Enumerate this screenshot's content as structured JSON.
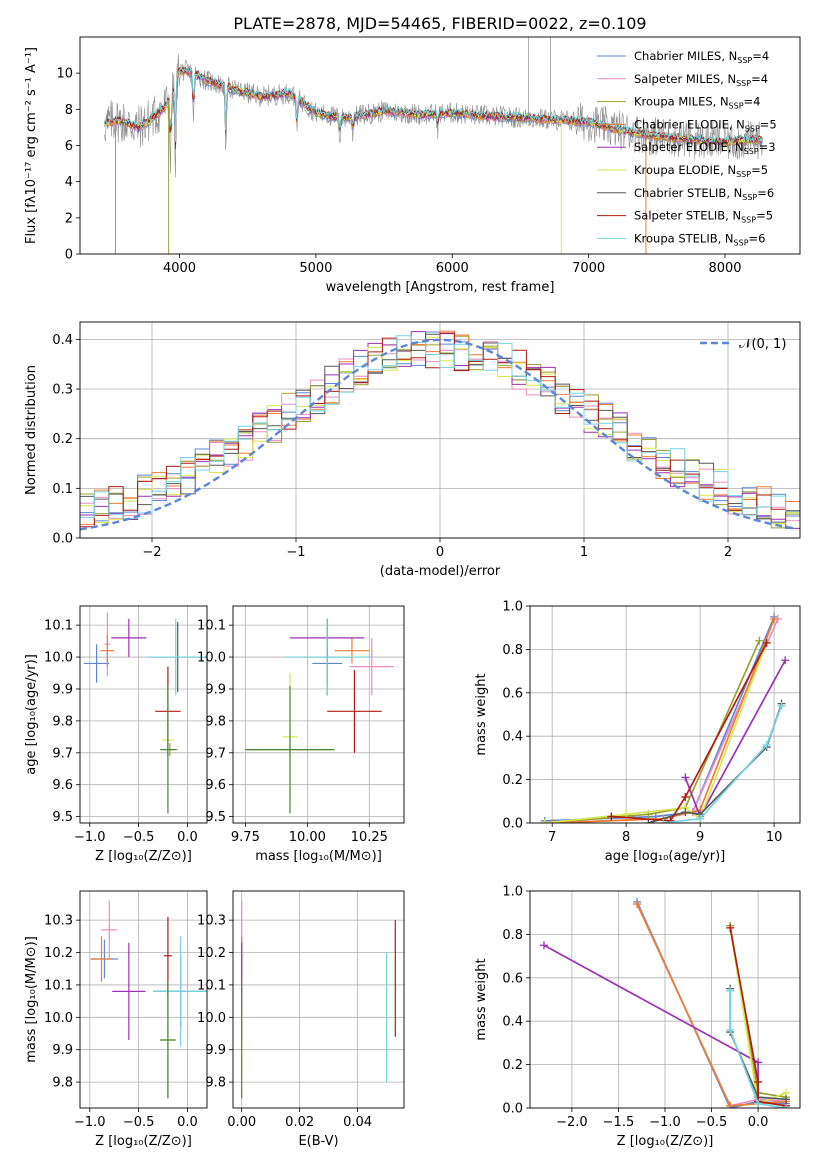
{
  "figure_title": "PLATE=2878, MJD=54465, FIBERID=0022, z=0.109",
  "colors": {
    "c_miles": "#5b87d6",
    "s_miles": "#e98ec3",
    "k_miles": "#9aa033",
    "c_elodie": "#ed7d31",
    "s_elodie": "#9b32b6",
    "k_elodie": "#d6e84e",
    "c_stelib": "#595959",
    "s_stelib": "#b01c12",
    "k_stelib": "#74d3df",
    "data": "#8c8c8c",
    "normal": "#5b87d6",
    "green_cross": "#4a8a3a"
  },
  "chart_data": [
    {
      "id": "spectrum",
      "type": "line",
      "title": "PLATE=2878, MJD=54465, FIBERID=0022, z=0.109",
      "xlabel": "wavelength [Angstrom, rest frame]",
      "ylabel": "Flux [fλ10⁻¹⁷ erg cm⁻² s⁻¹ A⁻¹]",
      "xlim": [
        3270,
        8550
      ],
      "ylim": [
        0,
        12
      ],
      "xticks": [
        4000,
        5000,
        6000,
        7000,
        8000
      ],
      "yticks": [
        0,
        2,
        4,
        6,
        8,
        10
      ],
      "xticklabels": [
        "4000",
        "5000",
        "6000",
        "7000",
        "8000"
      ],
      "yticklabels": [
        "0",
        "2",
        "4",
        "6",
        "8",
        "10"
      ],
      "grid": false,
      "legend_position": "upper-right",
      "continuum": {
        "x": [
          3450,
          3550,
          3700,
          3800,
          3900,
          3950,
          4000,
          4100,
          4200,
          4400,
          4600,
          4800,
          4900,
          5000,
          5200,
          5500,
          5800,
          6000,
          6300,
          6600,
          6800,
          7000,
          7200,
          7500,
          7800,
          8000,
          8200,
          8280
        ],
        "y": [
          7.2,
          7.4,
          7.0,
          7.5,
          8.2,
          8.8,
          10.2,
          10.0,
          9.6,
          9.1,
          8.7,
          8.9,
          8.4,
          7.8,
          7.5,
          7.9,
          7.7,
          7.8,
          7.6,
          7.5,
          7.4,
          7.3,
          6.9,
          6.5,
          6.3,
          6.2,
          6.3,
          6.3
        ]
      },
      "absorption_lines": [
        {
          "x": 3934,
          "y": 4.8
        },
        {
          "x": 3969,
          "y": 4.3
        },
        {
          "x": 4102,
          "y": 7.0
        },
        {
          "x": 4340,
          "y": 5.3
        },
        {
          "x": 4861,
          "y": 6.5
        },
        {
          "x": 5175,
          "y": 6.4
        },
        {
          "x": 5270,
          "y": 6.6
        },
        {
          "x": 5893,
          "y": 6.9
        }
      ],
      "series": [
        {
          "name": "Chabrier MILES, N",
          "sub": "SSP",
          "suffix": "=4",
          "color_key": "c_miles"
        },
        {
          "name": "Salpeter MILES, N",
          "sub": "SSP",
          "suffix": "=4",
          "color_key": "s_miles"
        },
        {
          "name": "Kroupa MILES, N",
          "sub": "SSP",
          "suffix": "=4",
          "color_key": "k_miles"
        },
        {
          "name": "Chabrier ELODIE, N",
          "sub": "SSP",
          "suffix": "=5",
          "color_key": "c_elodie"
        },
        {
          "name": "Salpeter ELODIE, N",
          "sub": "SSP",
          "suffix": "=3",
          "color_key": "s_elodie"
        },
        {
          "name": "Kroupa ELODIE, N",
          "sub": "SSP",
          "suffix": "=5",
          "color_key": "k_elodie"
        },
        {
          "name": "Chabrier STELIB, N",
          "sub": "SSP",
          "suffix": "=6",
          "color_key": "c_stelib"
        },
        {
          "name": "Salpeter STELIB, N",
          "sub": "SSP",
          "suffix": "=5",
          "color_key": "s_stelib"
        },
        {
          "name": "Kroupa STELIB, N",
          "sub": "SSP",
          "suffix": "=6",
          "color_key": "k_stelib"
        }
      ]
    },
    {
      "id": "residuals",
      "type": "bar",
      "xlabel": "(data-model)/error",
      "ylabel": "Normed distribution",
      "xlim": [
        -2.5,
        2.5
      ],
      "ylim": [
        0,
        0.435
      ],
      "xticks": [
        -2,
        -1,
        0,
        1,
        2
      ],
      "xticklabels": [
        "−2",
        "−1",
        "0",
        "1",
        "2"
      ],
      "yticks": [
        0,
        0.1,
        0.2,
        0.3,
        0.4
      ],
      "yticklabels": [
        "0.0",
        "0.1",
        "0.2",
        "0.3",
        "0.4"
      ],
      "grid": true,
      "legend_position": "upper-right",
      "normal_curve": {
        "name": "𝒩(0, 1)",
        "mean": 0,
        "sigma": 1
      },
      "hist_bin_width": 0.1
    },
    {
      "id": "age_vs_Z",
      "type": "scatter",
      "xlabel": "Z [log₁₀(Z/Z⊙)]",
      "ylabel": "age  [log₁₀(age/yr)]",
      "xlim": [
        -1.1,
        0.2
      ],
      "ylim": [
        9.48,
        10.16
      ],
      "xticks": [
        -1.0,
        -0.5,
        0.0
      ],
      "xticklabels": [
        "−1.0",
        "−0.5",
        "0.0"
      ],
      "yticks": [
        9.5,
        9.6,
        9.7,
        9.8,
        9.9,
        10.0,
        10.1
      ],
      "yticklabels": [
        "9.5",
        "9.6",
        "9.7",
        "9.8",
        "9.9",
        "10.0",
        "10.1"
      ],
      "grid": true,
      "points": [
        {
          "color_key": "c_miles",
          "x": -0.93,
          "y": 9.98,
          "xerr": 0.13,
          "yerr": 0.06
        },
        {
          "color_key": "s_miles",
          "x": -0.82,
          "y": 10.04,
          "xerr": 0.03,
          "yerr": 0.1
        },
        {
          "color_key": "k_miles",
          "x": -0.18,
          "y": 9.71,
          "xerr": 0.08,
          "yerr": 0.02
        },
        {
          "color_key": "c_elodie",
          "x": -0.82,
          "y": 10.02,
          "xerr": 0.07,
          "yerr": 0.05
        },
        {
          "color_key": "s_elodie",
          "x": -0.6,
          "y": 10.06,
          "xerr": 0.18,
          "yerr": 0.06
        },
        {
          "color_key": "k_elodie",
          "x": -0.2,
          "y": 9.74,
          "xerr": 0.06,
          "yerr": 0.21
        },
        {
          "color_key": "c_stelib",
          "x": -0.1,
          "y": 10.0,
          "xerr": 0.3,
          "yerr": 0.11
        },
        {
          "color_key": "s_stelib",
          "x": -0.2,
          "y": 9.83,
          "xerr": 0.13,
          "yerr": 0.14
        },
        {
          "color_key": "k_stelib",
          "x": -0.12,
          "y": 10.0,
          "xerr": 0.3,
          "yerr": 0.12
        },
        {
          "color_key": "green_cross",
          "x": -0.2,
          "y": 9.71,
          "xerr": 0.08,
          "yerr": 0.2
        }
      ]
    },
    {
      "id": "age_vs_mass",
      "type": "scatter",
      "xlabel": "mass [log₁₀(M/M⊙)]",
      "ylabel": "",
      "xlim": [
        9.7,
        10.39
      ],
      "ylim": [
        9.48,
        10.16
      ],
      "xticks": [
        9.75,
        10.0,
        10.25
      ],
      "xticklabels": [
        "9.75",
        "10.00",
        "10.25"
      ],
      "yticks": [
        9.5,
        9.6,
        9.7,
        9.8,
        9.9,
        10.0,
        10.1
      ],
      "yticklabels": [
        "9.5",
        "9.6",
        "9.7",
        "9.8",
        "9.9",
        "10.0",
        "10.1"
      ],
      "grid": true,
      "points": [
        {
          "color_key": "c_miles",
          "x": 10.08,
          "y": 9.98,
          "xerr": 0.06,
          "yerr": 0.06
        },
        {
          "color_key": "s_miles",
          "x": 10.26,
          "y": 9.97,
          "xerr": 0.09,
          "yerr": 0.09
        },
        {
          "color_key": "k_miles",
          "x": 9.93,
          "y": 9.71,
          "xerr": 0.18,
          "yerr": 0.02
        },
        {
          "color_key": "c_elodie",
          "x": 10.18,
          "y": 10.02,
          "xerr": 0.07,
          "yerr": 0.04
        },
        {
          "color_key": "s_elodie",
          "x": 10.08,
          "y": 10.06,
          "xerr": 0.15,
          "yerr": 0.06
        },
        {
          "color_key": "k_elodie",
          "x": 9.93,
          "y": 9.75,
          "xerr": 0.03,
          "yerr": 0.2
        },
        {
          "color_key": "c_stelib",
          "x": 10.08,
          "y": 10.0,
          "xerr": 0.1,
          "yerr": 0.12
        },
        {
          "color_key": "s_stelib",
          "x": 10.19,
          "y": 9.83,
          "xerr": 0.11,
          "yerr": 0.13
        },
        {
          "color_key": "k_stelib",
          "x": 10.08,
          "y": 10.0,
          "xerr": 0.17,
          "yerr": 0.12
        },
        {
          "color_key": "green_cross",
          "x": 9.93,
          "y": 9.71,
          "xerr": 0.18,
          "yerr": 0.2
        }
      ]
    },
    {
      "id": "mass_weight_vs_age",
      "type": "line",
      "xlabel": "age  [log₁₀(age/yr)]",
      "ylabel": "mass weight",
      "xlim": [
        6.7,
        10.35
      ],
      "ylim": [
        0,
        1
      ],
      "xticks": [
        7,
        8,
        9,
        10
      ],
      "xticklabels": [
        "7",
        "8",
        "9",
        "10"
      ],
      "yticks": [
        0,
        0.2,
        0.4,
        0.6,
        0.8,
        1.0
      ],
      "yticklabels": [
        "0.0",
        "0.2",
        "0.4",
        "0.6",
        "0.8",
        "1.0"
      ],
      "grid": true,
      "series": [
        {
          "color_key": "c_miles",
          "x": [
            6.9,
            8.4,
            8.9,
            10.0
          ],
          "y": [
            0.01,
            0.03,
            0.05,
            0.95
          ]
        },
        {
          "color_key": "s_miles",
          "x": [
            6.9,
            8.5,
            8.9,
            10.05
          ],
          "y": [
            0.0,
            0.02,
            0.05,
            0.94
          ]
        },
        {
          "color_key": "k_miles",
          "x": [
            6.9,
            8.3,
            8.8,
            9.8
          ],
          "y": [
            0.0,
            0.04,
            0.07,
            0.84
          ]
        },
        {
          "color_key": "c_elodie",
          "x": [
            7.0,
            8.5,
            9.0,
            10.0
          ],
          "y": [
            0.0,
            0.02,
            0.06,
            0.94
          ]
        },
        {
          "color_key": "s_elodie",
          "x": [
            8.8,
            9.0,
            10.15
          ],
          "y": [
            0.21,
            0.03,
            0.75
          ]
        },
        {
          "color_key": "k_elodie",
          "x": [
            6.9,
            8.0,
            8.8,
            9.0,
            9.9
          ],
          "y": [
            0.0,
            0.04,
            0.07,
            0.02,
            0.83
          ]
        },
        {
          "color_key": "c_stelib",
          "x": [
            8.3,
            8.8,
            9.0,
            9.9,
            10.1
          ],
          "y": [
            0.0,
            0.05,
            0.04,
            0.35,
            0.55
          ]
        },
        {
          "color_key": "s_stelib",
          "x": [
            7.8,
            8.6,
            8.8,
            9.9
          ],
          "y": [
            0.03,
            0.01,
            0.12,
            0.83
          ]
        },
        {
          "color_key": "k_stelib",
          "x": [
            8.5,
            9.0,
            9.9,
            10.1
          ],
          "y": [
            0.0,
            0.02,
            0.36,
            0.54
          ]
        }
      ]
    },
    {
      "id": "mass_vs_Z",
      "type": "scatter",
      "xlabel": "Z [log₁₀(Z/Z⊙)]",
      "ylabel": "mass [log₁₀(M/M⊙)]",
      "xlim": [
        -1.1,
        0.2
      ],
      "ylim": [
        9.72,
        10.39
      ],
      "xticks": [
        -1.0,
        -0.5,
        0.0
      ],
      "xticklabels": [
        "−1.0",
        "−0.5",
        "0.0"
      ],
      "yticks": [
        9.8,
        9.9,
        10.0,
        10.1,
        10.2,
        10.3
      ],
      "yticklabels": [
        "9.8",
        "9.9",
        "10.0",
        "10.1",
        "10.2",
        "10.3"
      ],
      "grid": true,
      "points": [
        {
          "color_key": "c_miles",
          "x": -0.85,
          "y": 10.18,
          "xerr": 0.14,
          "yerr": 0.06
        },
        {
          "color_key": "s_miles",
          "x": -0.8,
          "y": 10.27,
          "xerr": 0.08,
          "yerr": 0.09
        },
        {
          "color_key": "k_miles",
          "x": -0.2,
          "y": 9.93,
          "xerr": 0.08,
          "yerr": 0.18
        },
        {
          "color_key": "c_elodie",
          "x": -0.88,
          "y": 10.18,
          "xerr": 0.11,
          "yerr": 0.07
        },
        {
          "color_key": "s_elodie",
          "x": -0.6,
          "y": 10.08,
          "xerr": 0.17,
          "yerr": 0.15
        },
        {
          "color_key": "k_elodie",
          "x": -0.2,
          "y": 9.93,
          "xerr": 0.08,
          "yerr": 0.03
        },
        {
          "color_key": "c_stelib",
          "x": -0.07,
          "y": 10.08,
          "xerr": 0.28,
          "yerr": 0.11
        },
        {
          "color_key": "s_stelib",
          "x": -0.2,
          "y": 10.19,
          "xerr": 0.04,
          "yerr": 0.12
        },
        {
          "color_key": "k_stelib",
          "x": -0.07,
          "y": 10.08,
          "xerr": 0.28,
          "yerr": 0.17
        },
        {
          "color_key": "green_cross",
          "x": -0.2,
          "y": 9.93,
          "xerr": 0.08,
          "yerr": 0.18
        }
      ]
    },
    {
      "id": "mass_vs_ebv",
      "type": "scatter",
      "xlabel": "E(B-V)",
      "ylabel": "",
      "xlim": [
        -0.003,
        0.056
      ],
      "ylim": [
        9.72,
        10.39
      ],
      "xticks": [
        0,
        0.02,
        0.04
      ],
      "xticklabels": [
        "0.00",
        "0.02",
        "0.04"
      ],
      "yticks": [
        9.8,
        9.9,
        10.0,
        10.1,
        10.2,
        10.3
      ],
      "yticklabels": [
        "9.8",
        "9.9",
        "10.0",
        "10.1",
        "10.2",
        "10.3"
      ],
      "grid": true,
      "points": [
        {
          "color_key": "c_miles",
          "x": 0.0,
          "y": 10.18,
          "xerr": 0,
          "yerr": 0.06
        },
        {
          "color_key": "s_miles",
          "x": 0.0,
          "y": 10.27,
          "xerr": 0,
          "yerr": 0.09
        },
        {
          "color_key": "c_elodie",
          "x": 0.0,
          "y": 10.18,
          "xerr": 0,
          "yerr": 0.07
        },
        {
          "color_key": "s_elodie",
          "x": 0.0,
          "y": 10.08,
          "xerr": 0,
          "yerr": 0.15
        },
        {
          "color_key": "k_elodie",
          "x": 0.0,
          "y": 9.93,
          "xerr": 0,
          "yerr": 0.1
        },
        {
          "color_key": "green_cross",
          "x": 0.0,
          "y": 9.93,
          "xerr": 0,
          "yerr": 0.18
        },
        {
          "color_key": "k_stelib",
          "x": 0.05,
          "y": 10.0,
          "xerr": 0,
          "yerr": 0.2
        },
        {
          "color_key": "s_stelib",
          "x": 0.053,
          "y": 10.12,
          "xerr": 0,
          "yerr": 0.18
        }
      ]
    },
    {
      "id": "mass_weight_vs_Z",
      "type": "line",
      "xlabel": "Z [log₁₀(Z/Z⊙)]",
      "ylabel": "mass weight",
      "xlim": [
        -2.45,
        0.45
      ],
      "ylim": [
        0,
        1
      ],
      "xticks": [
        -2.0,
        -1.5,
        -1.0,
        -0.5,
        0.0
      ],
      "xticklabels": [
        "−2.0",
        "−1.5",
        "−1.0",
        "−0.5",
        "0.0"
      ],
      "yticks": [
        0,
        0.2,
        0.4,
        0.6,
        0.8,
        1.0
      ],
      "yticklabels": [
        "0.0",
        "0.2",
        "0.4",
        "0.6",
        "0.8",
        "1.0"
      ],
      "grid": true,
      "series": [
        {
          "color_key": "c_miles",
          "x": [
            -1.3,
            -0.3,
            0.0,
            0.3
          ],
          "y": [
            0.95,
            0.0,
            0.03,
            0.02
          ]
        },
        {
          "color_key": "s_miles",
          "x": [
            -1.3,
            -0.3,
            0.0,
            0.3
          ],
          "y": [
            0.94,
            0.01,
            0.04,
            0.03
          ]
        },
        {
          "color_key": "k_miles",
          "x": [
            -0.3,
            0.0,
            0.3
          ],
          "y": [
            0.84,
            0.07,
            0.05
          ]
        },
        {
          "color_key": "c_elodie",
          "x": [
            -1.3,
            -0.3,
            0.0,
            0.3
          ],
          "y": [
            0.94,
            0.01,
            0.02,
            0.03
          ]
        },
        {
          "color_key": "s_elodie",
          "x": [
            -2.3,
            0.0,
            0.0
          ],
          "y": [
            0.75,
            0.21,
            0.03
          ]
        },
        {
          "color_key": "k_elodie",
          "x": [
            -0.3,
            0.0,
            0.3
          ],
          "y": [
            0.83,
            0.02,
            0.07
          ]
        },
        {
          "color_key": "c_stelib",
          "x": [
            -0.3,
            -0.3,
            0.0,
            0.3
          ],
          "y": [
            0.55,
            0.35,
            0.05,
            0.04
          ]
        },
        {
          "color_key": "s_stelib",
          "x": [
            -0.3,
            0.0,
            0.0,
            0.3
          ],
          "y": [
            0.83,
            0.12,
            0.03,
            0.01
          ]
        },
        {
          "color_key": "k_stelib",
          "x": [
            -0.3,
            -0.3,
            0.0,
            0.3
          ],
          "y": [
            0.54,
            0.36,
            0.02,
            0.0
          ]
        }
      ]
    }
  ]
}
